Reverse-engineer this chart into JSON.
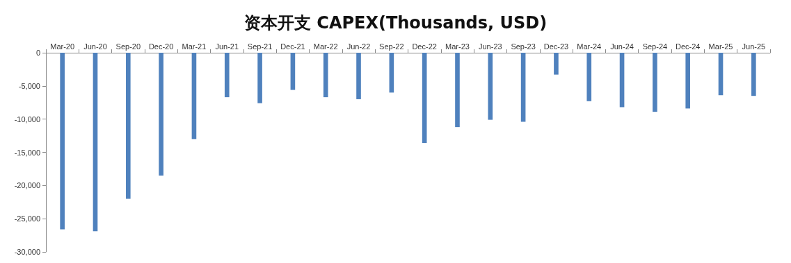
{
  "chart_data": {
    "type": "bar",
    "title": "资本开支 CAPEX(Thousands, USD)",
    "categories": [
      "Mar-20",
      "Jun-20",
      "Sep-20",
      "Dec-20",
      "Mar-21",
      "Jun-21",
      "Sep-21",
      "Dec-21",
      "Mar-22",
      "Jun-22",
      "Sep-22",
      "Dec-22",
      "Mar-23",
      "Jun-23",
      "Sep-23",
      "Dec-23",
      "Mar-24",
      "Jun-24",
      "Sep-24",
      "Dec-24",
      "Mar-25",
      "Jun-25"
    ],
    "values": [
      -26600,
      -26900,
      -22000,
      -18500,
      -13000,
      -6700,
      -7600,
      -5600,
      -6700,
      -7000,
      -6000,
      -13600,
      -11200,
      -10100,
      -10400,
      -3300,
      -7300,
      -8200,
      -8900,
      -8400,
      -6400,
      -6500
    ],
    "color": "#4f81bd",
    "ylim": [
      -30000,
      0
    ],
    "yticks": [
      {
        "value": -30000,
        "label": "-30,000"
      },
      {
        "value": -25000,
        "label": "-25,000"
      },
      {
        "value": -20000,
        "label": "-20,000"
      },
      {
        "value": -15000,
        "label": "-15,000"
      },
      {
        "value": -10000,
        "label": "-10,000"
      },
      {
        "value": -5000,
        "label": "-5,000"
      },
      0
    ],
    "grid": false
  }
}
